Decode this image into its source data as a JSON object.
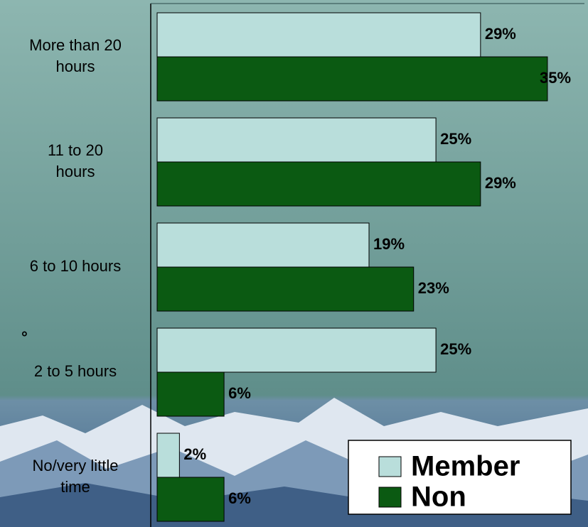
{
  "chart_data": {
    "type": "hbar",
    "categories": [
      "More than 20\nhours",
      "11 to 20\nhours",
      "6 to 10 hours",
      "2 to 5 hours",
      "No/very little\ntime"
    ],
    "series": [
      {
        "name": "Member",
        "color": "#b9dedb",
        "values": [
          29,
          25,
          19,
          25,
          2
        ],
        "value_labels": [
          "29%",
          "25%",
          "19%",
          "25%",
          "2%"
        ]
      },
      {
        "name": "Non",
        "color": "#0b5a12",
        "values": [
          35,
          29,
          23,
          6,
          6
        ],
        "value_labels": [
          "35%",
          "29%",
          "23%",
          "6%",
          "6%"
        ]
      }
    ],
    "annotation": "°",
    "xlim": [
      0,
      38
    ],
    "legend": "bottom-right"
  }
}
